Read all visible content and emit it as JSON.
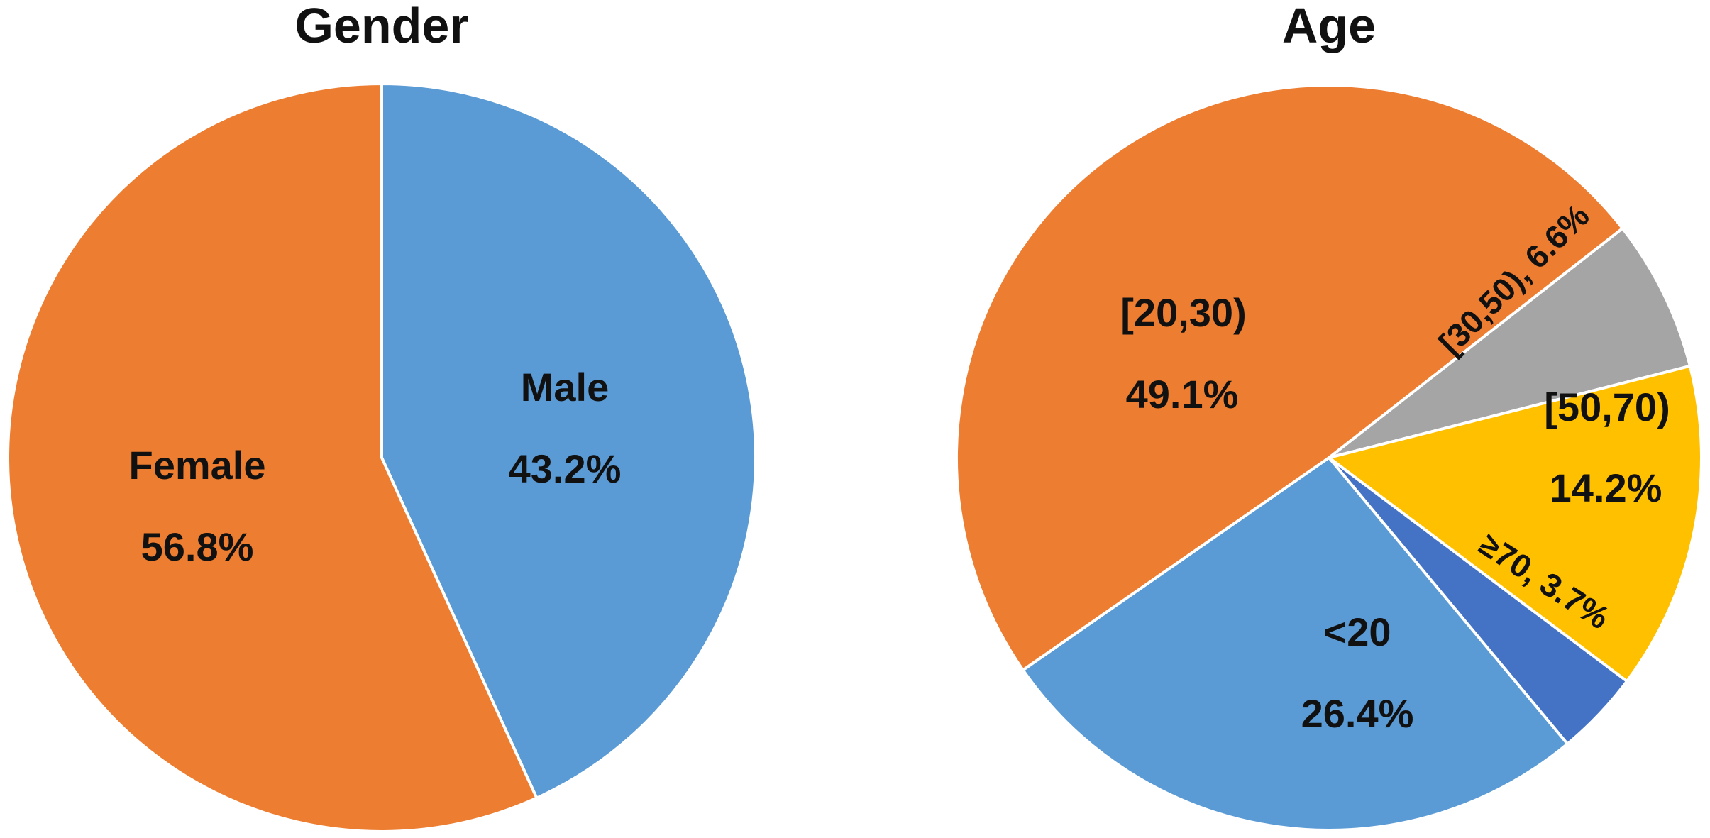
{
  "chart_data": [
    {
      "type": "pie",
      "title": "Gender",
      "slices": [
        {
          "name": "Male",
          "value": 43.2,
          "value_label": "43.2%",
          "color": "#5B9BD5"
        },
        {
          "name": "Female",
          "value": 56.8,
          "value_label": "56.8%",
          "color": "#ED7D31"
        }
      ]
    },
    {
      "type": "pie",
      "title": "Age",
      "slices": [
        {
          "name": "[30,50)",
          "value": 6.6,
          "value_label": "6.6%",
          "color": "#A5A5A5"
        },
        {
          "name": "[50,70)",
          "value": 14.2,
          "value_label": "14.2%",
          "color": "#FFC000"
        },
        {
          "name": "≥70",
          "value": 3.7,
          "value_label": "3.7%",
          "color": "#4472C4"
        },
        {
          "name": "<20",
          "value": 26.4,
          "value_label": "26.4%",
          "color": "#5B9BD5"
        },
        {
          "name": "[20,30)",
          "value": 49.1,
          "value_label": "49.1%",
          "color": "#ED7D31"
        }
      ]
    }
  ]
}
